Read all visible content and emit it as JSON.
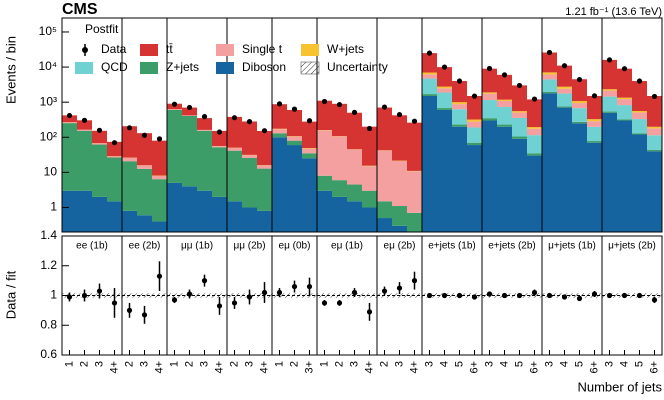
{
  "chart_data": {
    "type": "bar",
    "title": "CMS",
    "subtitle": "Postfit",
    "lumi": "1.21 fb⁻¹ (13.6 TeV)",
    "ylabel": "Events / bin",
    "ratio_ylabel": "Data / fit",
    "xlabel": "Number of jets",
    "log_y": true,
    "ylim": [
      0.2,
      250000
    ],
    "yticks": [
      1,
      10,
      {
        "value": 100,
        "label": "10²"
      },
      {
        "value": 1000,
        "label": "10³"
      },
      {
        "value": 10000,
        "label": "10⁴"
      },
      {
        "value": 100000,
        "label": "10⁵"
      }
    ],
    "ratio_ylim": [
      0.6,
      1.4
    ],
    "ratio_yticks": [
      0.6,
      0.8,
      1,
      1.2,
      1.4
    ],
    "channels": [
      {
        "name": "ee (1b)",
        "bins": [
          "1",
          "2",
          "3",
          "4+"
        ]
      },
      {
        "name": "ee (2b)",
        "bins": [
          "2",
          "3",
          "4+"
        ]
      },
      {
        "name": "μμ (1b)",
        "bins": [
          "1",
          "2",
          "3",
          "4+"
        ]
      },
      {
        "name": "μμ (2b)",
        "bins": [
          "2",
          "3",
          "4+"
        ]
      },
      {
        "name": "eμ (0b)",
        "bins": [
          "1",
          "2",
          "3+"
        ]
      },
      {
        "name": "eμ (1b)",
        "bins": [
          "1",
          "2",
          "3",
          "4+"
        ]
      },
      {
        "name": "eμ (2b)",
        "bins": [
          "2",
          "3",
          "4+"
        ]
      },
      {
        "name": "e+jets (1b)",
        "bins": [
          "3",
          "4",
          "5",
          "6+"
        ]
      },
      {
        "name": "e+jets (2b)",
        "bins": [
          "3",
          "4",
          "5",
          "6+"
        ]
      },
      {
        "name": "μ+jets (1b)",
        "bins": [
          "3",
          "4",
          "5",
          "6+"
        ]
      },
      {
        "name": "μ+jets (2b)",
        "bins": [
          "3",
          "4",
          "5",
          "6+"
        ]
      }
    ],
    "series": [
      {
        "name": "Diboson",
        "color": "#16649f",
        "values": [
          3,
          3,
          2,
          1.5,
          0.8,
          0.6,
          0.4,
          5,
          4,
          3,
          2,
          1.5,
          1,
          0.8,
          100,
          60,
          25,
          3,
          2,
          1.5,
          1,
          0.5,
          0.3,
          0.2,
          1500,
          600,
          200,
          60,
          300,
          200,
          90,
          30,
          1800,
          700,
          250,
          70,
          500,
          300,
          120,
          40
        ]
      },
      {
        "name": "Z+jets",
        "color": "#3d9d68",
        "values": [
          250,
          150,
          60,
          25,
          20,
          12,
          6,
          600,
          400,
          150,
          50,
          40,
          25,
          12,
          30,
          20,
          10,
          5,
          4,
          3,
          2,
          1,
          0.8,
          0.5,
          200,
          80,
          30,
          10,
          50,
          30,
          15,
          5,
          150,
          60,
          25,
          8,
          40,
          25,
          10,
          4
        ]
      },
      {
        "name": "QCD",
        "color": "#6fd1d1",
        "values": [
          0,
          0,
          0,
          0,
          0,
          0,
          0,
          0,
          0,
          0,
          0,
          0,
          0,
          0,
          0,
          0,
          0,
          0,
          0,
          0,
          0,
          0,
          0,
          0,
          3000,
          1200,
          400,
          120,
          800,
          500,
          250,
          80,
          2500,
          1000,
          400,
          120,
          900,
          500,
          200,
          70
        ]
      },
      {
        "name": "Single t",
        "color": "#f4a0a0",
        "values": [
          15,
          10,
          5,
          2,
          5,
          3,
          1.5,
          25,
          15,
          8,
          4,
          8,
          5,
          3,
          40,
          25,
          12,
          150,
          100,
          40,
          12,
          40,
          20,
          10,
          1500,
          600,
          250,
          90,
          600,
          350,
          150,
          60,
          1700,
          650,
          270,
          90,
          700,
          400,
          180,
          65
        ]
      },
      {
        "name": "W+jets",
        "color": "#f7c331",
        "values": [
          2,
          1,
          1,
          0.5,
          0.5,
          0.3,
          0.2,
          3,
          2,
          1,
          0.5,
          1,
          0.5,
          0.3,
          5,
          3,
          2,
          3,
          2,
          1,
          0.5,
          1,
          0.5,
          0.3,
          800,
          300,
          120,
          40,
          150,
          100,
          50,
          20,
          900,
          350,
          130,
          40,
          200,
          120,
          50,
          20
        ]
      },
      {
        "name": "tt̄",
        "color": "#d53433",
        "values": [
          150,
          140,
          85,
          45,
          180,
          115,
          72,
          270,
          280,
          190,
          95,
          330,
          250,
          135,
          700,
          490,
          230,
          940,
          790,
          455,
          185,
          660,
          400,
          250,
          18000,
          7200,
          3000,
          1180,
          7100,
          4820,
          2445,
          1005,
          18950,
          8240,
          3425,
          1172,
          13660,
          7655,
          3440,
          1301
        ]
      }
    ],
    "data": {
      "name": "Data",
      "values": [
        416,
        304,
        158,
        70,
        186,
        114,
        90,
        876,
        708,
        387,
        141,
        361,
        279,
        154,
        893,
        634,
        296,
        1046,
        853,
        511,
        178,
        724,
        443,
        287,
        25000,
        9980,
        4000,
        1485,
        9090,
        6000,
        3000,
        1224,
        26000,
        10890,
        4410,
        1515,
        16000,
        9000,
        4000,
        1455
      ]
    },
    "uncertainty": {
      "name": "Uncertainty",
      "ratio_halfwidth": 0.015
    },
    "ratio": {
      "values": [
        0.99,
        1.0,
        1.03,
        0.95,
        0.9,
        0.87,
        1.13,
        0.97,
        1.01,
        1.1,
        0.93,
        0.95,
        0.99,
        1.02,
        1.02,
        1.06,
        1.06,
        0.95,
        0.95,
        1.02,
        0.89,
        1.03,
        1.05,
        1.1,
        1.0,
        1.0,
        1.0,
        0.99,
        1.01,
        1.0,
        1.0,
        1.02,
        1.0,
        0.99,
        0.98,
        1.01,
        1.0,
        1.0,
        1.0,
        0.97
      ],
      "errors": [
        0.03,
        0.04,
        0.05,
        0.1,
        0.05,
        0.06,
        0.1,
        0.02,
        0.03,
        0.04,
        0.06,
        0.04,
        0.05,
        0.07,
        0.03,
        0.04,
        0.06,
        0.02,
        0.02,
        0.03,
        0.06,
        0.03,
        0.04,
        0.06,
        0.005,
        0.008,
        0.01,
        0.015,
        0.008,
        0.01,
        0.012,
        0.02,
        0.005,
        0.008,
        0.01,
        0.02,
        0.006,
        0.008,
        0.012,
        0.02
      ]
    }
  }
}
